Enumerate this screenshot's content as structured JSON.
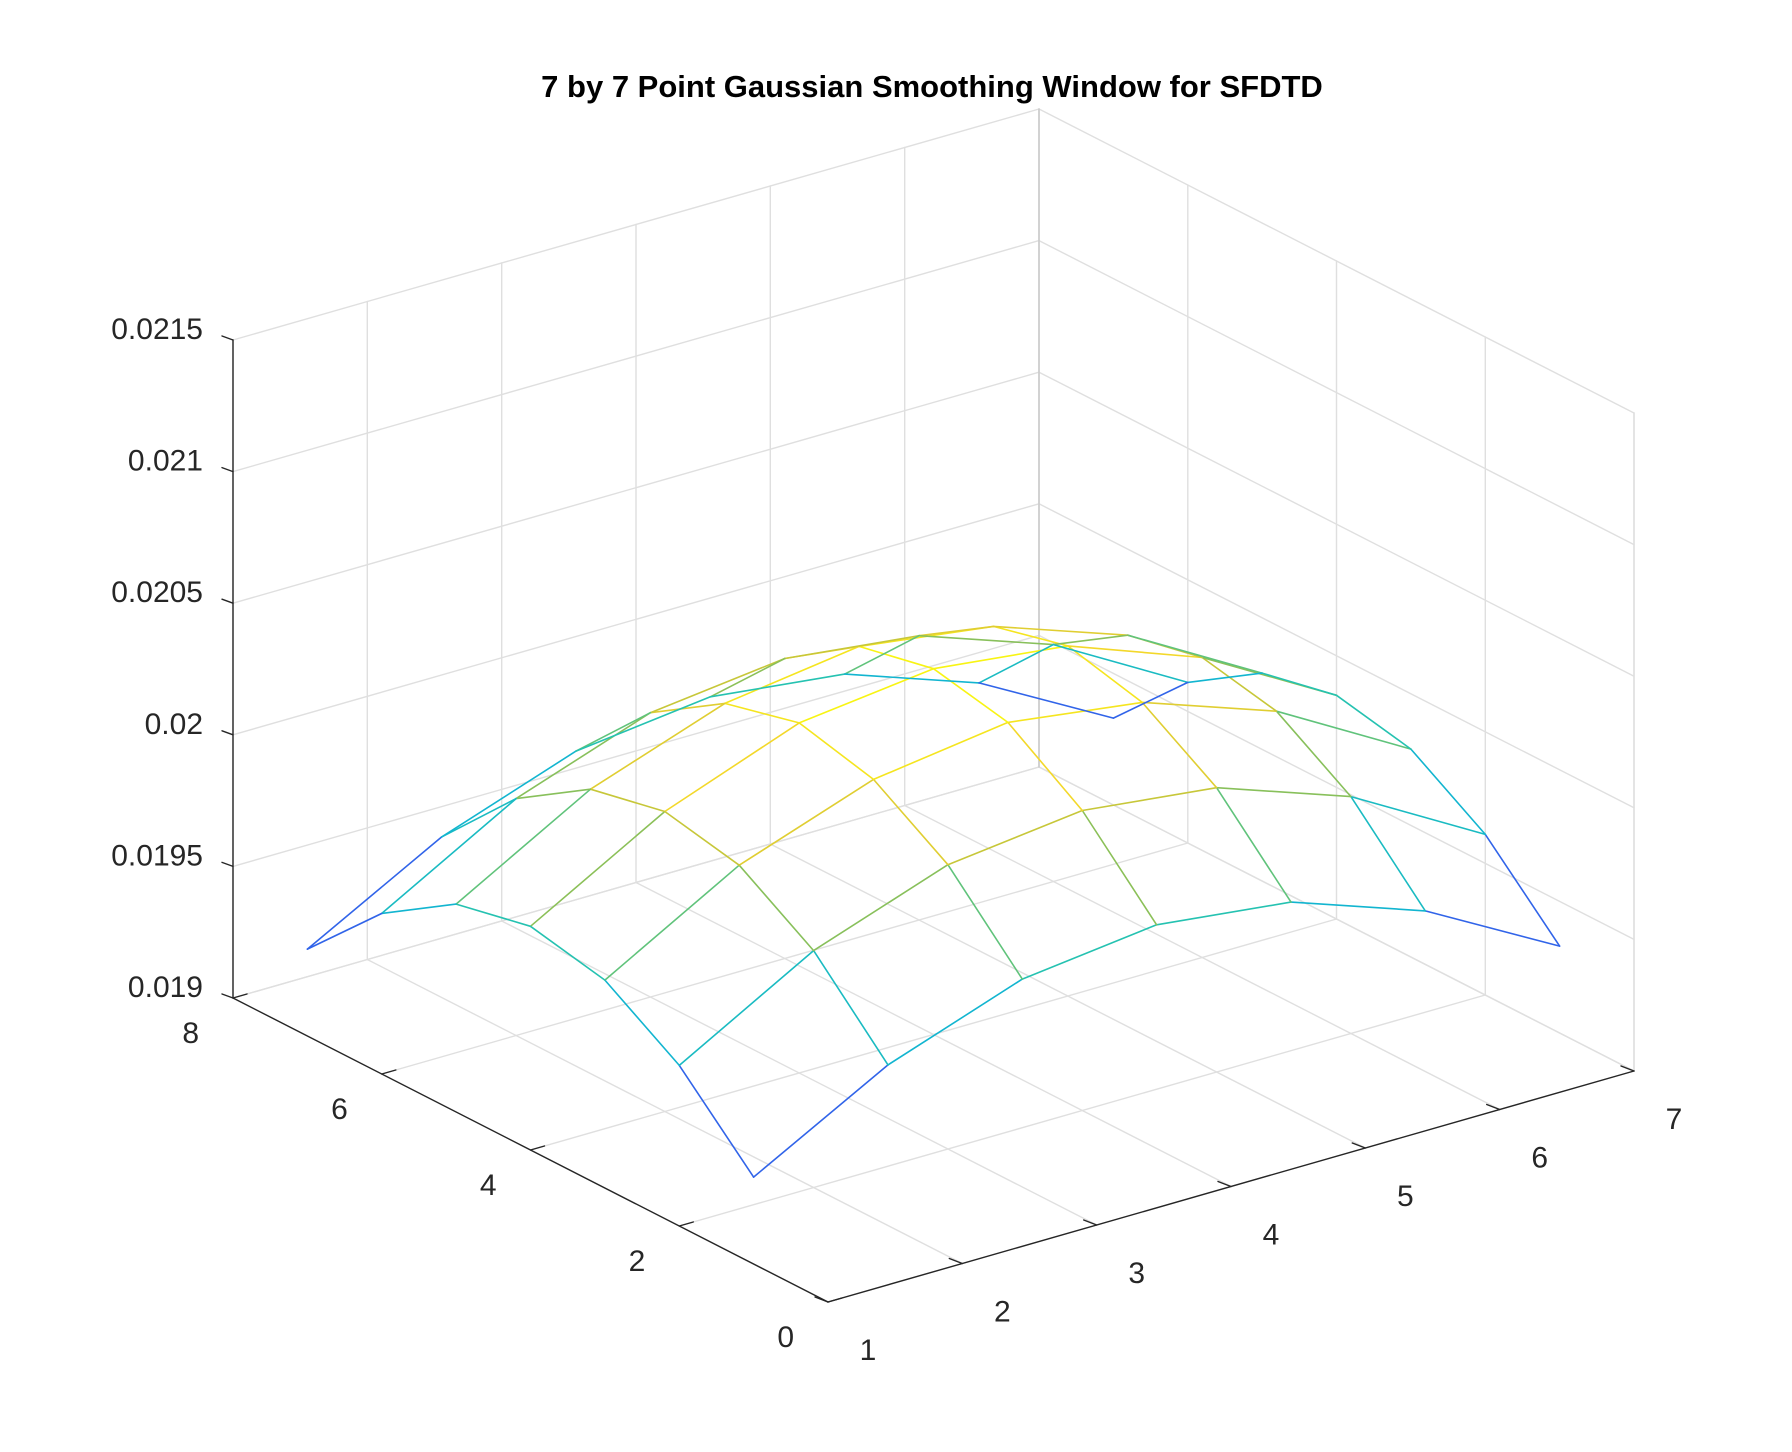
{
  "chart_data": {
    "type": "mesh",
    "title": "7 by 7 Point Gaussian Smoothing Window for SFDTD",
    "xlabel": "",
    "ylabel": "",
    "zlabel": "",
    "x": [
      1,
      2,
      3,
      4,
      5,
      6,
      7
    ],
    "y": [
      1,
      2,
      3,
      4,
      5,
      6,
      7
    ],
    "z": [
      [
        0.01933,
        0.01961,
        0.01979,
        0.01985,
        0.01979,
        0.01961,
        0.01933
      ],
      [
        0.01961,
        0.0199,
        0.02008,
        0.02014,
        0.02008,
        0.0199,
        0.01961
      ],
      [
        0.01979,
        0.02008,
        0.02026,
        0.02033,
        0.02026,
        0.02008,
        0.01979
      ],
      [
        0.01985,
        0.02014,
        0.02033,
        0.02039,
        0.02033,
        0.02014,
        0.01985
      ],
      [
        0.01979,
        0.02008,
        0.02026,
        0.02033,
        0.02026,
        0.02008,
        0.01979
      ],
      [
        0.01961,
        0.0199,
        0.02008,
        0.02014,
        0.02008,
        0.0199,
        0.01961
      ],
      [
        0.01933,
        0.01961,
        0.01979,
        0.01985,
        0.01979,
        0.01961,
        0.01933
      ]
    ],
    "xlim": [
      1,
      7
    ],
    "ylim": [
      0,
      8
    ],
    "zlim": [
      0.019,
      0.0215
    ],
    "xticks": [
      1,
      2,
      3,
      4,
      5,
      6,
      7
    ],
    "xtick_labels": [
      "1",
      "2",
      "3",
      "4",
      "5",
      "6",
      "7"
    ],
    "yticks": [
      0,
      2,
      4,
      6,
      8
    ],
    "ytick_labels": [
      "0",
      "2",
      "4",
      "6",
      "8"
    ],
    "zticks": [
      0.019,
      0.0195,
      0.02,
      0.0205,
      0.021,
      0.0215
    ],
    "ztick_labels": [
      "0.019",
      "0.0195",
      "0.02",
      "0.0205",
      "0.021",
      "0.0215"
    ],
    "grid": true,
    "colormap": [
      "#3e26a8",
      "#2e74fa",
      "#0fb3d4",
      "#2bc7a7",
      "#a9be40",
      "#f2d32e",
      "#f9fb0e"
    ],
    "axis_color": "#262626",
    "grid_color": "#dfdfdf"
  }
}
